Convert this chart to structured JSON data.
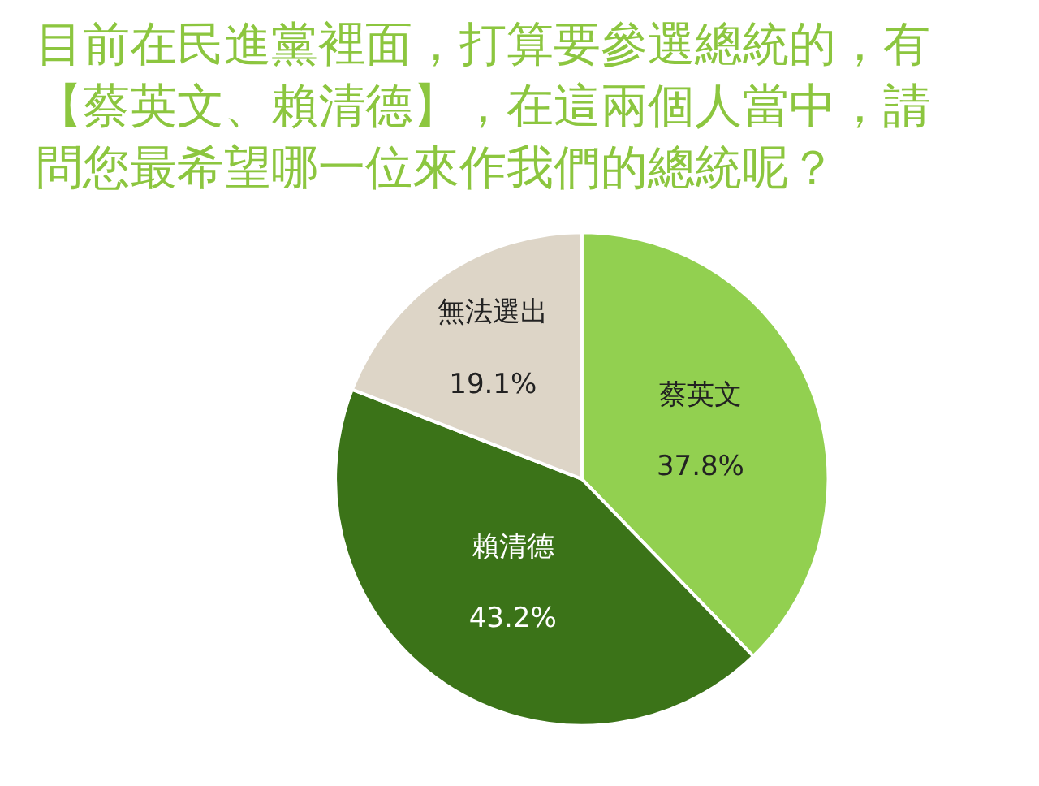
{
  "chart_data": {
    "type": "pie",
    "title": "目前在民進黨裡面，打算要參選總統的，有【蔡英文、賴清德】，在這兩個人當中，請問您最希望哪一位來作我們的總統呢？",
    "categories": [
      "蔡英文",
      "賴清德",
      "無法選出"
    ],
    "values": [
      37.8,
      43.2,
      19.1
    ],
    "colors": [
      "#92d050",
      "#3b7318",
      "#ddd5c7"
    ],
    "value_labels": [
      "37.8%",
      "43.2%",
      "19.1%"
    ],
    "legend": false
  }
}
